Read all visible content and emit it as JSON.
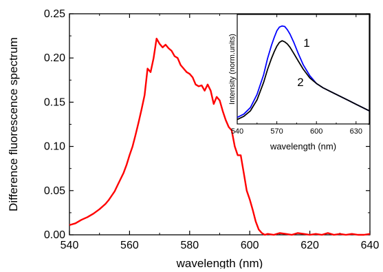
{
  "chart_data": [
    {
      "type": "line",
      "id": "main",
      "xlabel": "wavelength (nm)",
      "ylabel": "Difference fluorescence spectrum",
      "xlim": [
        540,
        640
      ],
      "ylim": [
        0,
        0.25
      ],
      "x_ticks": [
        540,
        560,
        580,
        600,
        620,
        640
      ],
      "x_tick_labels": [
        "540",
        "560",
        "580",
        "600",
        "620",
        "640"
      ],
      "y_ticks": [
        0,
        0.05,
        0.1,
        0.15,
        0.2,
        0.25
      ],
      "y_tick_labels": [
        "0.00",
        "0.05",
        "0.10",
        "0.15",
        "0.20",
        "0.25"
      ],
      "grid": false,
      "series": [
        {
          "color": "#ff0000",
          "x": [
            540,
            542,
            544,
            546,
            548,
            550,
            552,
            553,
            554,
            555,
            556,
            557,
            558,
            559,
            560,
            561,
            562,
            563,
            564,
            565,
            566,
            567,
            568,
            569,
            570,
            571,
            572,
            573,
            574,
            575,
            576,
            577,
            578,
            579,
            580,
            581,
            582,
            583,
            584,
            585,
            586,
            587,
            588,
            589,
            590,
            591,
            592,
            593,
            594,
            595,
            596,
            597,
            598,
            599,
            600,
            601,
            602,
            603,
            604,
            605,
            606,
            608,
            610,
            612,
            614,
            616,
            618,
            620,
            622,
            624,
            626,
            628,
            630,
            632,
            634,
            636,
            638,
            640
          ],
          "y": [
            0.011,
            0.013,
            0.017,
            0.02,
            0.024,
            0.029,
            0.035,
            0.039,
            0.044,
            0.049,
            0.056,
            0.063,
            0.07,
            0.079,
            0.09,
            0.1,
            0.113,
            0.127,
            0.142,
            0.158,
            0.188,
            0.184,
            0.2,
            0.222,
            0.216,
            0.212,
            0.215,
            0.211,
            0.208,
            0.202,
            0.2,
            0.192,
            0.188,
            0.184,
            0.182,
            0.178,
            0.17,
            0.168,
            0.169,
            0.163,
            0.17,
            0.163,
            0.148,
            0.156,
            0.152,
            0.14,
            0.13,
            0.122,
            0.118,
            0.1,
            0.09,
            0.09,
            0.07,
            0.05,
            0.04,
            0.028,
            0.015,
            0.006,
            0.002,
            0.0,
            0.001,
            0.0,
            0.002,
            0.001,
            0.0,
            0.002,
            0.001,
            0.0,
            0.001,
            0.0,
            0.002,
            0.0,
            0.001,
            0.0,
            0.001,
            0.0,
            0.0,
            0.001
          ]
        }
      ]
    },
    {
      "type": "line",
      "id": "inset",
      "xlabel": "wavelength (nm)",
      "ylabel": "Intensity (norm.units)",
      "xlim": [
        540,
        640
      ],
      "x_ticks": [
        540,
        570,
        600,
        630
      ],
      "x_tick_labels": [
        "540",
        "570",
        "600",
        "630"
      ],
      "y_range_relative": [
        0,
        1
      ],
      "grid": false,
      "series": [
        {
          "name": "1",
          "color": "#0000ff",
          "x": [
            540,
            545,
            550,
            555,
            560,
            563,
            566,
            568,
            570,
            572,
            574,
            576,
            578,
            580,
            583,
            586,
            590,
            595,
            600,
            605,
            610,
            615,
            620,
            625,
            630,
            635,
            640
          ],
          "y": [
            0.06,
            0.09,
            0.15,
            0.27,
            0.45,
            0.6,
            0.72,
            0.79,
            0.85,
            0.885,
            0.895,
            0.89,
            0.86,
            0.82,
            0.74,
            0.65,
            0.54,
            0.44,
            0.37,
            0.33,
            0.3,
            0.27,
            0.24,
            0.21,
            0.18,
            0.15,
            0.12
          ]
        },
        {
          "name": "2",
          "color": "#000000",
          "x": [
            540,
            545,
            550,
            555,
            560,
            563,
            566,
            568,
            570,
            572,
            574,
            576,
            578,
            580,
            583,
            586,
            590,
            595,
            600,
            605,
            610,
            615,
            620,
            625,
            630,
            635,
            640
          ],
          "y": [
            0.04,
            0.07,
            0.12,
            0.22,
            0.38,
            0.5,
            0.6,
            0.66,
            0.71,
            0.745,
            0.76,
            0.75,
            0.73,
            0.7,
            0.64,
            0.58,
            0.5,
            0.42,
            0.37,
            0.33,
            0.3,
            0.27,
            0.24,
            0.21,
            0.18,
            0.15,
            0.12
          ]
        }
      ]
    }
  ]
}
